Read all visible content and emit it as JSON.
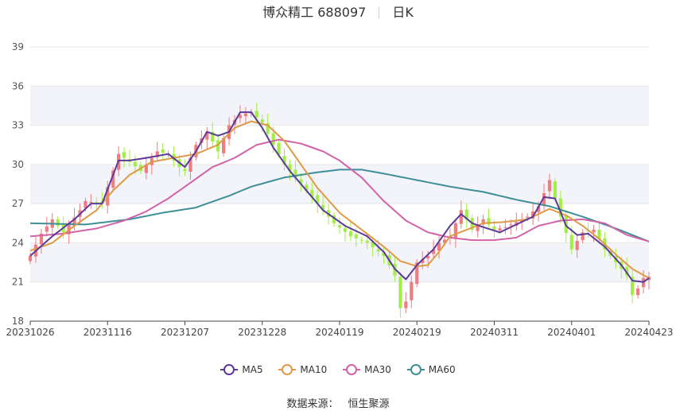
{
  "header": {
    "title": "博众精工 688097",
    "period": "日K"
  },
  "source": {
    "label": "数据来源：",
    "value": "恒生聚源"
  },
  "colors": {
    "up": "#ef7c80",
    "down": "#a3ee45",
    "grid": "#e6e6e6",
    "band": "#f3f4f9"
  },
  "chart_data": {
    "type": "candlestick",
    "title": "博众精工 688097",
    "ylim": [
      18,
      39
    ],
    "yticks": [
      18,
      21,
      24,
      27,
      30,
      33,
      36,
      39
    ],
    "xtick_labels": [
      "20231026",
      "20231116",
      "20231207",
      "20231228",
      "20240119",
      "20240219",
      "20240311",
      "20240401",
      "20240423"
    ],
    "xtick_index": [
      0,
      14,
      28,
      42,
      56,
      70,
      84,
      98,
      112
    ],
    "n_days": 113,
    "legend": [
      {
        "name": "MA5",
        "color": "#5b3a9a"
      },
      {
        "name": "MA10",
        "color": "#e09a45"
      },
      {
        "name": "MA30",
        "color": "#d263a8"
      },
      {
        "name": "MA60",
        "color": "#3f8f96"
      }
    ],
    "close_keypoints": [
      [
        0,
        23.0
      ],
      [
        2,
        24.7
      ],
      [
        4,
        25.8
      ],
      [
        6,
        24.8
      ],
      [
        9,
        26.5
      ],
      [
        10,
        27.2
      ],
      [
        13,
        27.0
      ],
      [
        16,
        30.8
      ],
      [
        18,
        30.2
      ],
      [
        20,
        29.5
      ],
      [
        23,
        31.0
      ],
      [
        25,
        30.8
      ],
      [
        27,
        29.8
      ],
      [
        28,
        29.5
      ],
      [
        30,
        31.5
      ],
      [
        32,
        32.5
      ],
      [
        34,
        31.0
      ],
      [
        36,
        33.0
      ],
      [
        38,
        33.8
      ],
      [
        40,
        34.0
      ],
      [
        42,
        33.2
      ],
      [
        44,
        31.5
      ],
      [
        46,
        30.0
      ],
      [
        49,
        28.5
      ],
      [
        52,
        27.0
      ],
      [
        55,
        25.5
      ],
      [
        58,
        24.5
      ],
      [
        61,
        24.0
      ],
      [
        64,
        23.0
      ],
      [
        66,
        21.5
      ],
      [
        67,
        19.0
      ],
      [
        68,
        19.5
      ],
      [
        70,
        22.5
      ],
      [
        72,
        23.0
      ],
      [
        74,
        24.0
      ],
      [
        76,
        24.5
      ],
      [
        78,
        26.5
      ],
      [
        80,
        25.0
      ],
      [
        82,
        25.8
      ],
      [
        84,
        25.0
      ],
      [
        86,
        25.2
      ],
      [
        88,
        25.6
      ],
      [
        90,
        26.0
      ],
      [
        92,
        26.8
      ],
      [
        94,
        28.8
      ],
      [
        96,
        26.0
      ],
      [
        98,
        23.5
      ],
      [
        100,
        24.8
      ],
      [
        102,
        25.0
      ],
      [
        104,
        23.5
      ],
      [
        106,
        22.5
      ],
      [
        108,
        21.5
      ],
      [
        109,
        20.0
      ],
      [
        110,
        20.5
      ],
      [
        111,
        21.3
      ],
      [
        112,
        21.4
      ]
    ],
    "ma5_keypoints": [
      [
        0,
        23.0
      ],
      [
        4,
        24.5
      ],
      [
        8,
        25.8
      ],
      [
        11,
        27.0
      ],
      [
        13,
        27.0
      ],
      [
        16,
        30.3
      ],
      [
        18,
        30.3
      ],
      [
        21,
        30.5
      ],
      [
        25,
        30.8
      ],
      [
        28,
        29.8
      ],
      [
        30,
        31.0
      ],
      [
        32,
        32.5
      ],
      [
        34,
        32.2
      ],
      [
        36,
        32.5
      ],
      [
        38,
        34.0
      ],
      [
        40,
        34.0
      ],
      [
        42,
        32.8
      ],
      [
        44,
        31.3
      ],
      [
        47,
        29.5
      ],
      [
        50,
        28.0
      ],
      [
        53,
        26.5
      ],
      [
        57,
        25.3
      ],
      [
        61,
        24.5
      ],
      [
        64,
        23.3
      ],
      [
        66,
        22.0
      ],
      [
        68,
        21.2
      ],
      [
        70,
        22.3
      ],
      [
        73,
        23.5
      ],
      [
        76,
        25.3
      ],
      [
        78,
        26.2
      ],
      [
        80,
        25.5
      ],
      [
        82,
        25.2
      ],
      [
        85,
        24.8
      ],
      [
        88,
        25.4
      ],
      [
        91,
        26.0
      ],
      [
        93,
        27.5
      ],
      [
        95,
        27.4
      ],
      [
        97,
        25.3
      ],
      [
        99,
        24.6
      ],
      [
        101,
        24.7
      ],
      [
        104,
        23.7
      ],
      [
        107,
        22.3
      ],
      [
        109,
        21.1
      ],
      [
        111,
        21.0
      ],
      [
        112,
        21.3
      ]
    ],
    "ma10_keypoints": [
      [
        0,
        23.4
      ],
      [
        4,
        24.0
      ],
      [
        8,
        25.3
      ],
      [
        12,
        26.5
      ],
      [
        15,
        28.0
      ],
      [
        18,
        29.2
      ],
      [
        22,
        30.2
      ],
      [
        26,
        30.5
      ],
      [
        30,
        30.8
      ],
      [
        34,
        31.5
      ],
      [
        37,
        32.8
      ],
      [
        40,
        33.3
      ],
      [
        43,
        33.0
      ],
      [
        46,
        31.8
      ],
      [
        49,
        30.0
      ],
      [
        52,
        28.2
      ],
      [
        56,
        26.3
      ],
      [
        60,
        25.0
      ],
      [
        64,
        23.7
      ],
      [
        67,
        22.6
      ],
      [
        70,
        22.2
      ],
      [
        72,
        22.3
      ],
      [
        74,
        23.3
      ],
      [
        76,
        24.5
      ],
      [
        79,
        25.0
      ],
      [
        82,
        25.5
      ],
      [
        86,
        25.6
      ],
      [
        90,
        25.8
      ],
      [
        94,
        26.6
      ],
      [
        97,
        26.1
      ],
      [
        100,
        25.3
      ],
      [
        103,
        24.3
      ],
      [
        106,
        23.1
      ],
      [
        109,
        22.0
      ],
      [
        112,
        21.3
      ]
    ],
    "ma30_keypoints": [
      [
        0,
        24.5
      ],
      [
        6,
        24.7
      ],
      [
        12,
        25.1
      ],
      [
        17,
        25.7
      ],
      [
        21,
        26.4
      ],
      [
        25,
        27.4
      ],
      [
        29,
        28.6
      ],
      [
        33,
        29.8
      ],
      [
        37,
        30.5
      ],
      [
        41,
        31.5
      ],
      [
        45,
        31.9
      ],
      [
        49,
        31.6
      ],
      [
        53,
        31.0
      ],
      [
        56,
        30.3
      ],
      [
        60,
        29.0
      ],
      [
        64,
        27.2
      ],
      [
        68,
        25.7
      ],
      [
        72,
        24.8
      ],
      [
        76,
        24.4
      ],
      [
        80,
        24.2
      ],
      [
        84,
        24.2
      ],
      [
        88,
        24.4
      ],
      [
        92,
        25.3
      ],
      [
        96,
        25.7
      ],
      [
        100,
        25.8
      ],
      [
        104,
        25.5
      ],
      [
        108,
        24.6
      ],
      [
        112,
        24.1
      ]
    ],
    "ma60_keypoints": [
      [
        0,
        25.5
      ],
      [
        10,
        25.4
      ],
      [
        18,
        25.8
      ],
      [
        24,
        26.3
      ],
      [
        30,
        26.7
      ],
      [
        36,
        27.6
      ],
      [
        40,
        28.3
      ],
      [
        46,
        29.0
      ],
      [
        52,
        29.4
      ],
      [
        56,
        29.6
      ],
      [
        60,
        29.6
      ],
      [
        64,
        29.3
      ],
      [
        70,
        28.8
      ],
      [
        76,
        28.3
      ],
      [
        82,
        27.9
      ],
      [
        88,
        27.3
      ],
      [
        94,
        26.8
      ],
      [
        100,
        26.0
      ],
      [
        106,
        25.1
      ],
      [
        112,
        24.1
      ]
    ]
  }
}
